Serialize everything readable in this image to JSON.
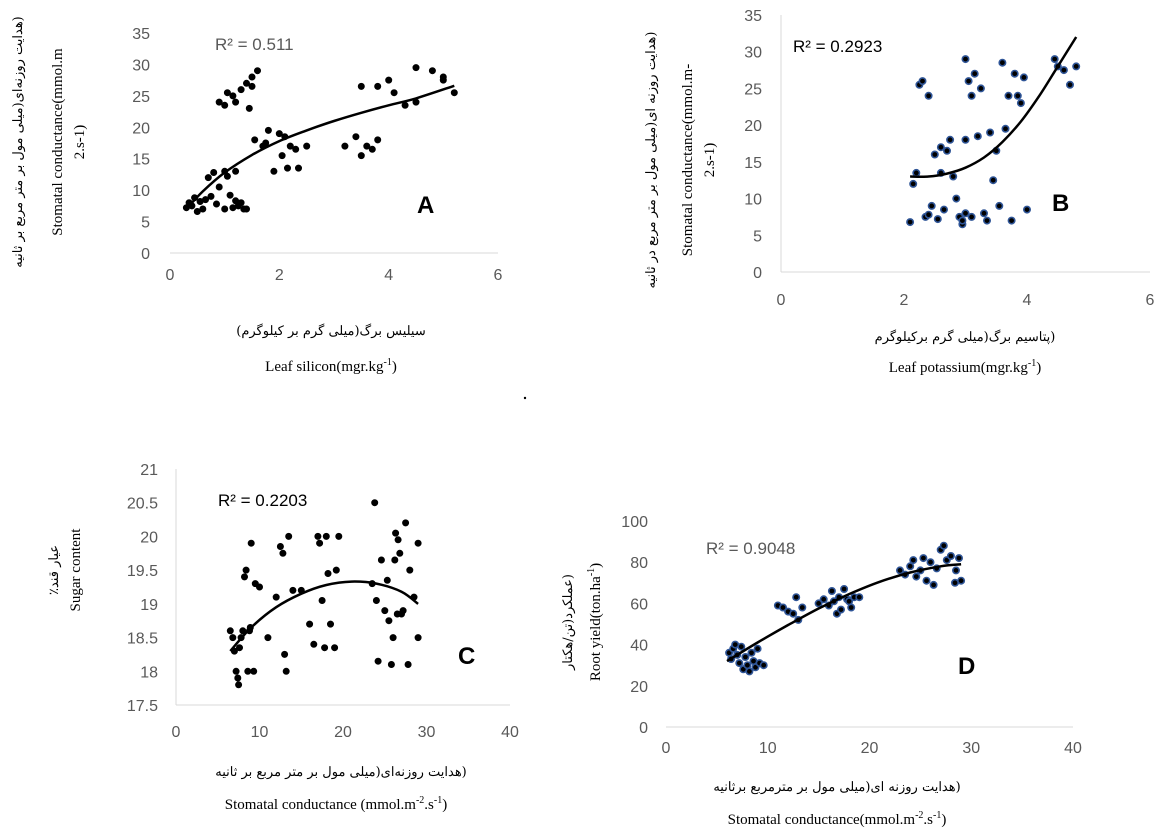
{
  "chart_data": [
    {
      "panel": "A",
      "type": "scatter",
      "r_squared": "R² = 0.511",
      "xlabel": "Leaf silicon(mgr.kg",
      "xlabel_sup": "-1",
      "xlabel_end": ")",
      "xlabel_fa": "سیلیس برگ(میلی گرم بر کیلوگرم)",
      "ylabel": "Stomatal conductance(mmol.m",
      "ylabel_cont": "2.s-1)",
      "ylabel_fa": "(هدایت روزنه‌ای(میلی مول بر متر مربع بر ثانیه",
      "xlim": [
        0,
        6
      ],
      "ylim": [
        0,
        35
      ],
      "xticks": [
        "0",
        "2",
        "4",
        "6"
      ],
      "yticks": [
        "0",
        "5",
        "10",
        "15",
        "20",
        "25",
        "30",
        "35"
      ],
      "marker_color": "#000000",
      "trendline": "logarithmic",
      "trend": [
        [
          0.3,
          7.0
        ],
        [
          0.6,
          9.8
        ],
        [
          1.0,
          12.8
        ],
        [
          1.5,
          15.6
        ],
        [
          2.0,
          17.8
        ],
        [
          2.5,
          19.5
        ],
        [
          3.0,
          21.0
        ],
        [
          3.5,
          22.3
        ],
        [
          4.0,
          23.5
        ],
        [
          4.5,
          24.6
        ],
        [
          5.2,
          26.6
        ]
      ],
      "points": [
        [
          0.3,
          7.2
        ],
        [
          0.35,
          8.0
        ],
        [
          0.4,
          7.5
        ],
        [
          0.45,
          8.8
        ],
        [
          0.5,
          6.6
        ],
        [
          0.55,
          8.2
        ],
        [
          0.6,
          7.0
        ],
        [
          0.65,
          8.5
        ],
        [
          0.7,
          12.0
        ],
        [
          0.75,
          9.0
        ],
        [
          0.8,
          12.8
        ],
        [
          0.85,
          7.8
        ],
        [
          0.9,
          10.5
        ],
        [
          1.0,
          13.0
        ],
        [
          1.0,
          7.0
        ],
        [
          1.05,
          12.2
        ],
        [
          1.1,
          9.2
        ],
        [
          1.15,
          7.2
        ],
        [
          1.2,
          13.0
        ],
        [
          1.2,
          8.3
        ],
        [
          1.25,
          7.5
        ],
        [
          1.3,
          8.0
        ],
        [
          1.35,
          7.0
        ],
        [
          1.4,
          7.0
        ],
        [
          0.9,
          24.0
        ],
        [
          1.0,
          23.5
        ],
        [
          1.05,
          25.5
        ],
        [
          1.15,
          25.0
        ],
        [
          1.2,
          24.0
        ],
        [
          1.3,
          26.0
        ],
        [
          1.4,
          27.0
        ],
        [
          1.5,
          28.0
        ],
        [
          1.6,
          29.0
        ],
        [
          1.5,
          26.5
        ],
        [
          1.45,
          23.0
        ],
        [
          1.55,
          18.0
        ],
        [
          1.7,
          17.0
        ],
        [
          1.75,
          17.5
        ],
        [
          1.8,
          19.5
        ],
        [
          1.9,
          13.0
        ],
        [
          2.0,
          19.0
        ],
        [
          2.05,
          15.5
        ],
        [
          2.1,
          18.5
        ],
        [
          2.15,
          13.5
        ],
        [
          2.2,
          17.0
        ],
        [
          2.3,
          16.5
        ],
        [
          2.35,
          13.5
        ],
        [
          2.5,
          17.0
        ],
        [
          3.2,
          17.0
        ],
        [
          3.4,
          18.5
        ],
        [
          3.5,
          15.5
        ],
        [
          3.6,
          17.0
        ],
        [
          3.7,
          16.5
        ],
        [
          3.8,
          18.0
        ],
        [
          3.5,
          26.5
        ],
        [
          3.8,
          26.5
        ],
        [
          4.0,
          27.5
        ],
        [
          4.1,
          25.5
        ],
        [
          4.3,
          23.5
        ],
        [
          4.5,
          24.0
        ],
        [
          4.5,
          29.5
        ],
        [
          4.8,
          29.0
        ],
        [
          5.0,
          28.0
        ],
        [
          5.0,
          27.5
        ],
        [
          5.2,
          25.5
        ]
      ]
    },
    {
      "panel": "B",
      "type": "scatter",
      "r_squared": "R² = 0.2923",
      "xlabel": "Leaf potassium(mgr.kg",
      "xlabel_sup": "-1",
      "xlabel_end": ")",
      "xlabel_fa": "(پتاسیم برگ(میلی گرم برکیلوگرم",
      "ylabel": "Stomatal conductance(mmol.m-",
      "ylabel_cont": "2.s-1)",
      "ylabel_fa": "(هدایت روزنه ای(میلی مول بر متر مربع در ثانیه",
      "xlim": [
        0,
        6
      ],
      "ylim": [
        0,
        35
      ],
      "xticks": [
        "0",
        "2",
        "4",
        "6"
      ],
      "yticks": [
        "0",
        "5",
        "10",
        "15",
        "20",
        "25",
        "30",
        "35"
      ],
      "marker_color": "#2f5597",
      "trendline": "polynomial",
      "trend": [
        [
          2.1,
          13.0
        ],
        [
          2.4,
          13.0
        ],
        [
          2.7,
          13.4
        ],
        [
          3.0,
          14.2
        ],
        [
          3.3,
          15.6
        ],
        [
          3.6,
          17.7
        ],
        [
          3.9,
          20.5
        ],
        [
          4.2,
          24.0
        ],
        [
          4.5,
          28.0
        ],
        [
          4.8,
          32.0
        ]
      ],
      "points": [
        [
          2.1,
          6.8
        ],
        [
          2.15,
          12.0
        ],
        [
          2.2,
          13.5
        ],
        [
          2.25,
          25.5
        ],
        [
          2.3,
          26.0
        ],
        [
          2.35,
          7.5
        ],
        [
          2.4,
          7.8
        ],
        [
          2.45,
          9.0
        ],
        [
          2.5,
          16.0
        ],
        [
          2.55,
          7.2
        ],
        [
          2.6,
          17.0
        ],
        [
          2.6,
          13.5
        ],
        [
          2.65,
          8.5
        ],
        [
          2.7,
          16.5
        ],
        [
          2.75,
          18.0
        ],
        [
          2.8,
          13.0
        ],
        [
          2.85,
          10.0
        ],
        [
          2.9,
          7.5
        ],
        [
          2.95,
          6.5
        ],
        [
          3.0,
          29.0
        ],
        [
          3.0,
          18.0
        ],
        [
          3.05,
          26.0
        ],
        [
          3.1,
          24.0
        ],
        [
          3.15,
          27.0
        ],
        [
          3.2,
          18.5
        ],
        [
          3.25,
          25.0
        ],
        [
          3.3,
          8.0
        ],
        [
          3.35,
          7.0
        ],
        [
          3.4,
          19.0
        ],
        [
          3.45,
          12.5
        ],
        [
          3.5,
          16.5
        ],
        [
          3.55,
          9.0
        ],
        [
          3.6,
          28.5
        ],
        [
          3.65,
          19.5
        ],
        [
          3.7,
          24.0
        ],
        [
          3.75,
          7.0
        ],
        [
          3.8,
          27.0
        ],
        [
          3.85,
          24.0
        ],
        [
          3.9,
          23.0
        ],
        [
          3.95,
          26.5
        ],
        [
          4.0,
          8.5
        ],
        [
          4.45,
          29.0
        ],
        [
          4.5,
          28.0
        ],
        [
          4.6,
          27.5
        ],
        [
          4.7,
          25.5
        ],
        [
          4.8,
          28.0
        ],
        [
          3.0,
          8.0
        ],
        [
          2.95,
          7.0
        ],
        [
          3.1,
          7.5
        ],
        [
          2.4,
          24.0
        ]
      ]
    },
    {
      "panel": "C",
      "type": "scatter",
      "r_squared": "R² = 0.2203",
      "xlabel": "Stomatal  conductance (mmol.m",
      "xlabel_sup": "-2",
      "xlabel_mid": ".s",
      "xlabel_sup2": "-1",
      "xlabel_end": ")",
      "xlabel_fa": "(هدایت روزنه‌ای(میلی مول بر متر مربع بر ثانیه",
      "ylabel": "Sugar content",
      "ylabel_fa": "عیار قند٪",
      "xlim": [
        0,
        40
      ],
      "ylim": [
        17.5,
        21
      ],
      "xticks": [
        "0",
        "10",
        "20",
        "30",
        "40"
      ],
      "yticks": [
        "17.5",
        "18",
        "18.5",
        "19",
        "19.5",
        "20",
        "20.5",
        "21"
      ],
      "marker_color": "#000000",
      "trendline": "polynomial",
      "trend": [
        [
          6.5,
          18.3
        ],
        [
          9,
          18.65
        ],
        [
          12,
          18.95
        ],
        [
          15,
          19.15
        ],
        [
          18,
          19.28
        ],
        [
          21,
          19.33
        ],
        [
          24,
          19.3
        ],
        [
          27,
          19.18
        ],
        [
          29,
          19.0
        ]
      ],
      "points": [
        [
          6.5,
          18.6
        ],
        [
          7.0,
          18.3
        ],
        [
          7.2,
          18.0
        ],
        [
          7.4,
          17.9
        ],
        [
          7.5,
          17.8
        ],
        [
          7.8,
          18.5
        ],
        [
          8.0,
          18.6
        ],
        [
          8.2,
          19.4
        ],
        [
          8.4,
          19.5
        ],
        [
          8.6,
          18.0
        ],
        [
          8.8,
          18.6
        ],
        [
          9.0,
          19.9
        ],
        [
          9.3,
          18.0
        ],
        [
          9.5,
          19.3
        ],
        [
          10.0,
          19.25
        ],
        [
          11.0,
          18.5
        ],
        [
          12.0,
          19.1
        ],
        [
          12.5,
          19.85
        ],
        [
          12.8,
          19.75
        ],
        [
          13.0,
          18.25
        ],
        [
          13.2,
          18.0
        ],
        [
          13.5,
          20.0
        ],
        [
          14.0,
          19.2
        ],
        [
          15.0,
          19.2
        ],
        [
          16.0,
          18.7
        ],
        [
          16.5,
          18.4
        ],
        [
          17.0,
          20.0
        ],
        [
          17.2,
          19.9
        ],
        [
          17.5,
          19.05
        ],
        [
          17.8,
          18.35
        ],
        [
          18.0,
          20.0
        ],
        [
          18.2,
          19.45
        ],
        [
          18.5,
          18.7
        ],
        [
          19.0,
          18.35
        ],
        [
          19.2,
          19.5
        ],
        [
          19.5,
          20.0
        ],
        [
          23.5,
          19.3
        ],
        [
          23.8,
          20.5
        ],
        [
          24.0,
          19.05
        ],
        [
          24.2,
          18.15
        ],
        [
          24.6,
          19.65
        ],
        [
          25.0,
          18.9
        ],
        [
          25.3,
          19.35
        ],
        [
          25.5,
          18.75
        ],
        [
          25.8,
          18.1
        ],
        [
          26.0,
          18.5
        ],
        [
          26.3,
          20.05
        ],
        [
          26.8,
          19.75
        ],
        [
          27.0,
          18.85
        ],
        [
          27.2,
          18.9
        ],
        [
          27.5,
          20.2
        ],
        [
          27.8,
          18.1
        ],
        [
          28.0,
          19.5
        ],
        [
          28.5,
          19.1
        ],
        [
          29.0,
          18.5
        ],
        [
          29.0,
          19.9
        ],
        [
          6.8,
          18.5
        ],
        [
          7.6,
          18.35
        ],
        [
          8.9,
          18.65
        ],
        [
          26.2,
          19.65
        ],
        [
          26.5,
          18.85
        ],
        [
          26.6,
          19.95
        ]
      ]
    },
    {
      "panel": "D",
      "type": "scatter",
      "r_squared": "R² = 0.9048",
      "xlabel": "Stomatal conductance(mmol.m",
      "xlabel_sup": "-2",
      "xlabel_mid": ".s",
      "xlabel_sup2": "-1",
      "xlabel_end": ")",
      "xlabel_fa": "(هدایت روزنه ای(میلی مول بر مترمربع برثانیه",
      "ylabel": "Root yield(ton.ha",
      "ylabel_sup": "-1",
      "ylabel_end": ")",
      "ylabel_fa": "(عملکرد(تن/هکتار",
      "xlim": [
        0,
        40
      ],
      "ylim": [
        0,
        100
      ],
      "xticks": [
        "0",
        "10",
        "20",
        "30",
        "40"
      ],
      "yticks": [
        "0",
        "20",
        "40",
        "60",
        "80",
        "100"
      ],
      "marker_color": "#2f5597",
      "trendline": "polynomial",
      "trend": [
        [
          6,
          32
        ],
        [
          9,
          41
        ],
        [
          12,
          49.5
        ],
        [
          15,
          57.5
        ],
        [
          18,
          64.5
        ],
        [
          21,
          70.5
        ],
        [
          24,
          75
        ],
        [
          27,
          78
        ],
        [
          29,
          79
        ]
      ],
      "points": [
        [
          6.2,
          36
        ],
        [
          6.4,
          33
        ],
        [
          6.6,
          38
        ],
        [
          6.8,
          40
        ],
        [
          7.0,
          35
        ],
        [
          7.2,
          31
        ],
        [
          7.4,
          39
        ],
        [
          7.6,
          28
        ],
        [
          7.8,
          34
        ],
        [
          8.0,
          30
        ],
        [
          8.2,
          27
        ],
        [
          8.4,
          36
        ],
        [
          8.6,
          32
        ],
        [
          8.8,
          29
        ],
        [
          9.0,
          38
        ],
        [
          9.2,
          31
        ],
        [
          9.6,
          30
        ],
        [
          11.0,
          59
        ],
        [
          11.5,
          58
        ],
        [
          12.0,
          56
        ],
        [
          12.5,
          55
        ],
        [
          12.8,
          63
        ],
        [
          13.0,
          52
        ],
        [
          13.4,
          58
        ],
        [
          15.0,
          60
        ],
        [
          15.5,
          62
        ],
        [
          16.0,
          59
        ],
        [
          16.3,
          66
        ],
        [
          16.5,
          61
        ],
        [
          16.8,
          55
        ],
        [
          17.0,
          63
        ],
        [
          17.2,
          57
        ],
        [
          17.5,
          67
        ],
        [
          17.8,
          62
        ],
        [
          18.0,
          61
        ],
        [
          18.2,
          58
        ],
        [
          18.5,
          63
        ],
        [
          19.0,
          63
        ],
        [
          23.0,
          76
        ],
        [
          23.5,
          74
        ],
        [
          24.0,
          78
        ],
        [
          24.3,
          81
        ],
        [
          24.6,
          73
        ],
        [
          25.0,
          76
        ],
        [
          25.3,
          82
        ],
        [
          25.6,
          71
        ],
        [
          26.0,
          80
        ],
        [
          26.3,
          69
        ],
        [
          26.6,
          77
        ],
        [
          27.0,
          86
        ],
        [
          27.3,
          88
        ],
        [
          27.6,
          81
        ],
        [
          28.0,
          83
        ],
        [
          28.4,
          70
        ],
        [
          28.8,
          82
        ],
        [
          29.0,
          71
        ],
        [
          28.5,
          76
        ]
      ]
    }
  ]
}
